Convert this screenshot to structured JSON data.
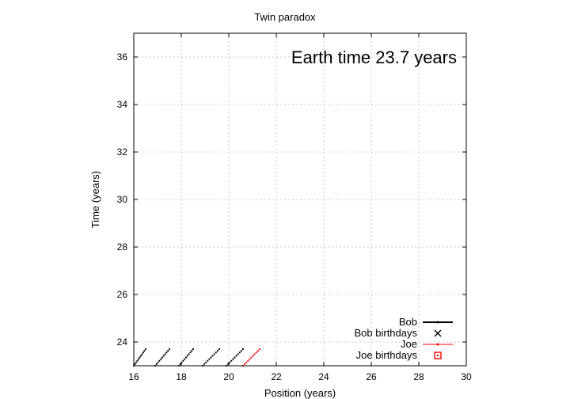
{
  "chart_data": {
    "type": "scatter",
    "title": "Twin paradox",
    "xlabel": "Position (years)",
    "ylabel": "Time (years)",
    "xlim": [
      16,
      30
    ],
    "ylim": [
      23,
      37
    ],
    "x_ticks": [
      16,
      18,
      20,
      22,
      24,
      26,
      28,
      30
    ],
    "y_ticks": [
      24,
      26,
      28,
      30,
      32,
      34,
      36
    ],
    "grid": true,
    "legend_position": "bottom-right",
    "annotation": "Earth time 23.7 years",
    "legend": [
      {
        "label": "Bob",
        "style": "line-dot",
        "color": "#000000"
      },
      {
        "label": "Bob birthdays",
        "style": "cross",
        "color": "#000000"
      },
      {
        "label": "Joe",
        "style": "line-dot",
        "color": "#ff0000"
      },
      {
        "label": "Joe birthdays",
        "style": "square",
        "color": "#ff0000"
      }
    ],
    "series": [
      {
        "name": "Bob",
        "color": "#000000",
        "segments": [
          {
            "x": [
              16.0,
              16.5
            ],
            "y": [
              23.0,
              23.7
            ]
          },
          {
            "x": [
              16.9,
              17.5
            ],
            "y": [
              23.0,
              23.7
            ]
          },
          {
            "x": [
              17.9,
              18.5
            ],
            "y": [
              23.0,
              23.7
            ]
          },
          {
            "x": [
              18.9,
              19.6
            ],
            "y": [
              23.0,
              23.7
            ]
          },
          {
            "x": [
              19.9,
              20.6
            ],
            "y": [
              23.0,
              23.7
            ]
          }
        ]
      },
      {
        "name": "Joe",
        "color": "#ff0000",
        "segments": [
          {
            "x": [
              20.6,
              21.3
            ],
            "y": [
              23.0,
              23.7
            ]
          }
        ]
      }
    ]
  }
}
